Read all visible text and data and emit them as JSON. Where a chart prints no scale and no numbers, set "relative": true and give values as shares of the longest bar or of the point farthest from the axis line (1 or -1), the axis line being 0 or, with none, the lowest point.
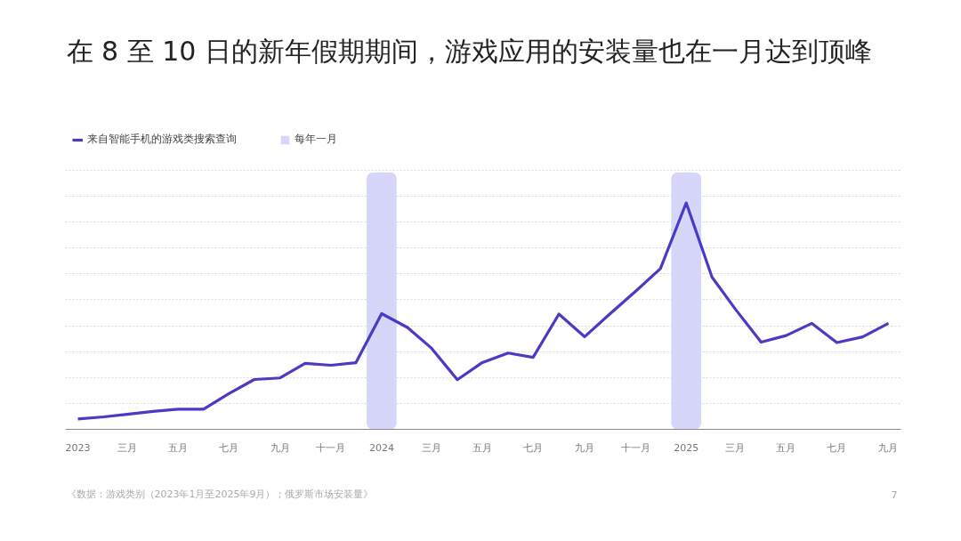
{
  "chart_data": {
    "type": "line",
    "title": "在 8 至 10 日的新年假期期间，游戏应用的安装量也在一月达到顶峰",
    "x": [
      "2023-01",
      "2023-02",
      "2023-03",
      "2023-04",
      "2023-05",
      "2023-06",
      "2023-07",
      "2023-08",
      "2023-09",
      "2023-10",
      "2023-11",
      "2023-12",
      "2024-01",
      "2024-02",
      "2024-03",
      "2024-04",
      "2024-05",
      "2024-06",
      "2024-07",
      "2024-08",
      "2024-09",
      "2024-10",
      "2024-11",
      "2024-12",
      "2025-01",
      "2025-02",
      "2025-03",
      "2025-04",
      "2025-05",
      "2025-06",
      "2025-07",
      "2025-08",
      "2025-09"
    ],
    "series": [
      {
        "name": "来自智能手机的游戏类搜索查询",
        "color": "#4a3ac4",
        "values": [
          0.046,
          0.055,
          0.066,
          0.079,
          0.089,
          0.089,
          0.157,
          0.22,
          0.227,
          0.291,
          0.283,
          0.294,
          0.511,
          0.45,
          0.358,
          0.219,
          0.295,
          0.337,
          0.318,
          0.509,
          0.409,
          0.509,
          0.609,
          0.71,
          1,
          0.672,
          0.531,
          0.385,
          0.414,
          0.468,
          0.383,
          0.408,
          0.468
        ]
      }
    ],
    "relative": true,
    "xlim": [
      "2022-12-17",
      "2025-09-16"
    ],
    "xticks": [
      "2023",
      {
        "value": "2023-03",
        "label": "三月"
      },
      {
        "value": "2023-05",
        "label": "五月"
      },
      {
        "value": "2023-07",
        "label": "七月"
      },
      {
        "value": "2023-09",
        "label": "九月"
      },
      {
        "value": "2023-11",
        "label": "十一月"
      },
      "2024",
      {
        "value": "2024-03",
        "label": "三月"
      },
      {
        "value": "2024-05",
        "label": "五月"
      },
      {
        "value": "2024-07",
        "label": "七月"
      },
      {
        "value": "2024-09",
        "label": "九月"
      },
      {
        "value": "2024-11",
        "label": "十一月"
      },
      "2025",
      {
        "value": "2025-03",
        "label": "三月"
      },
      {
        "value": "2025-05",
        "label": "五月"
      },
      {
        "value": "2025-07",
        "label": "七月"
      },
      {
        "value": "2025-09",
        "label": "九月"
      }
    ],
    "bands": [
      {
        "axis": "x",
        "from": "2023-12-14",
        "to": "2024-01-19",
        "label": "每年一月",
        "color": "#d6d5fa"
      },
      {
        "axis": "x",
        "from": "2024-12-14",
        "to": "2025-01-19",
        "color": "#d6d5fa"
      }
    ],
    "grid": "y",
    "legend": "top left",
    "annotations": [
      "《数据：游戏类别（2023年1月至2025年9月）；俄罗斯市场安装量》",
      "7"
    ]
  }
}
